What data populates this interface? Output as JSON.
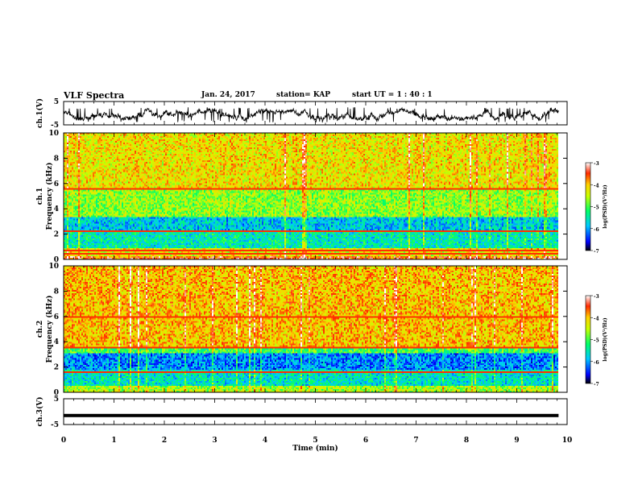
{
  "header": {
    "title": "VLF Spectra",
    "date": "Jan. 24, 2017",
    "station": "station= KAP",
    "start": "start  UT =   1 : 40 : 1"
  },
  "colors": {
    "trace": "#000000",
    "colormap": [
      "#000000",
      "#0000ff",
      "#00c8ff",
      "#00ff66",
      "#c8ff00",
      "#ffd000",
      "#ff2a00",
      "#ffffff"
    ]
  },
  "chart_data": [
    {
      "type": "line",
      "id": "ch1-waveform",
      "ylabel": "ch.1(V)",
      "yticks": [
        "5",
        "-5"
      ],
      "ylim": [
        -5,
        5
      ],
      "xlim": [
        0,
        10
      ],
      "series": [
        {
          "values_note_free": true,
          "x_range": [
            0,
            9.83
          ],
          "level_min": -4.0,
          "level_max": 2.5
        }
      ]
    },
    {
      "type": "heatmap",
      "id": "ch1-spectrogram",
      "ylabel": "ch.1",
      "ylabel2": "Frequency (kHz)",
      "yticks": [
        "0",
        "2",
        "4",
        "6",
        "8",
        "10"
      ],
      "ylim": [
        0,
        10
      ],
      "xlim": [
        0,
        10
      ],
      "data_xmax": 9.83,
      "colorbar": {
        "label": "log(PSD)(V²/Hz)",
        "ticks": [
          "-3",
          "-4",
          "-5",
          "-6",
          "-7"
        ],
        "range": [
          -7,
          -3
        ]
      },
      "bands": [
        {
          "f0": 0.0,
          "f1": 0.2,
          "level": -3.6
        },
        {
          "f0": 0.2,
          "f1": 0.9,
          "level": -4.3
        },
        {
          "f0": 0.9,
          "f1": 2.3,
          "level": -5.5
        },
        {
          "f0": 2.3,
          "f1": 3.3,
          "level": -5.8
        },
        {
          "f0": 3.3,
          "f1": 5.5,
          "level": -4.7
        },
        {
          "f0": 5.5,
          "f1": 10.0,
          "level": -4.2
        }
      ],
      "lines_khz": [
        0.4,
        0.7,
        2.25,
        5.6
      ]
    },
    {
      "type": "heatmap",
      "id": "ch2-spectrogram",
      "ylabel": "ch.2",
      "ylabel2": "Frequency (kHz)",
      "yticks": [
        "0",
        "2",
        "4",
        "6",
        "8",
        "10"
      ],
      "ylim": [
        0,
        10
      ],
      "xlim": [
        0,
        10
      ],
      "data_xmax": 9.83,
      "colorbar": {
        "label": "log(PSD)(V²/Hz)",
        "ticks": [
          "-3",
          "-4",
          "-5",
          "-6",
          "-7"
        ],
        "range": [
          -7,
          -3
        ]
      },
      "bands": [
        {
          "f0": 0.0,
          "f1": 0.5,
          "level": -4.6
        },
        {
          "f0": 0.5,
          "f1": 1.8,
          "level": -5.6
        },
        {
          "f0": 1.8,
          "f1": 3.1,
          "level": -6.1
        },
        {
          "f0": 3.1,
          "f1": 3.6,
          "level": -5.0
        },
        {
          "f0": 3.6,
          "f1": 10.0,
          "level": -4.0
        }
      ],
      "lines_khz": [
        1.6,
        3.55,
        6.0
      ]
    },
    {
      "type": "line",
      "id": "ch3-waveform",
      "ylabel": "ch.3(V)",
      "yticks": [
        "5",
        "-5"
      ],
      "ylim": [
        -5,
        5
      ],
      "xlim": [
        0,
        10
      ],
      "xlabel": "Time  (min)",
      "xticks": [
        "0",
        "1",
        "2",
        "3",
        "4",
        "5",
        "6",
        "7",
        "8",
        "9",
        "10"
      ],
      "series": [
        {
          "constant": -1.5,
          "x_range": [
            0,
            9.83
          ]
        }
      ]
    }
  ]
}
